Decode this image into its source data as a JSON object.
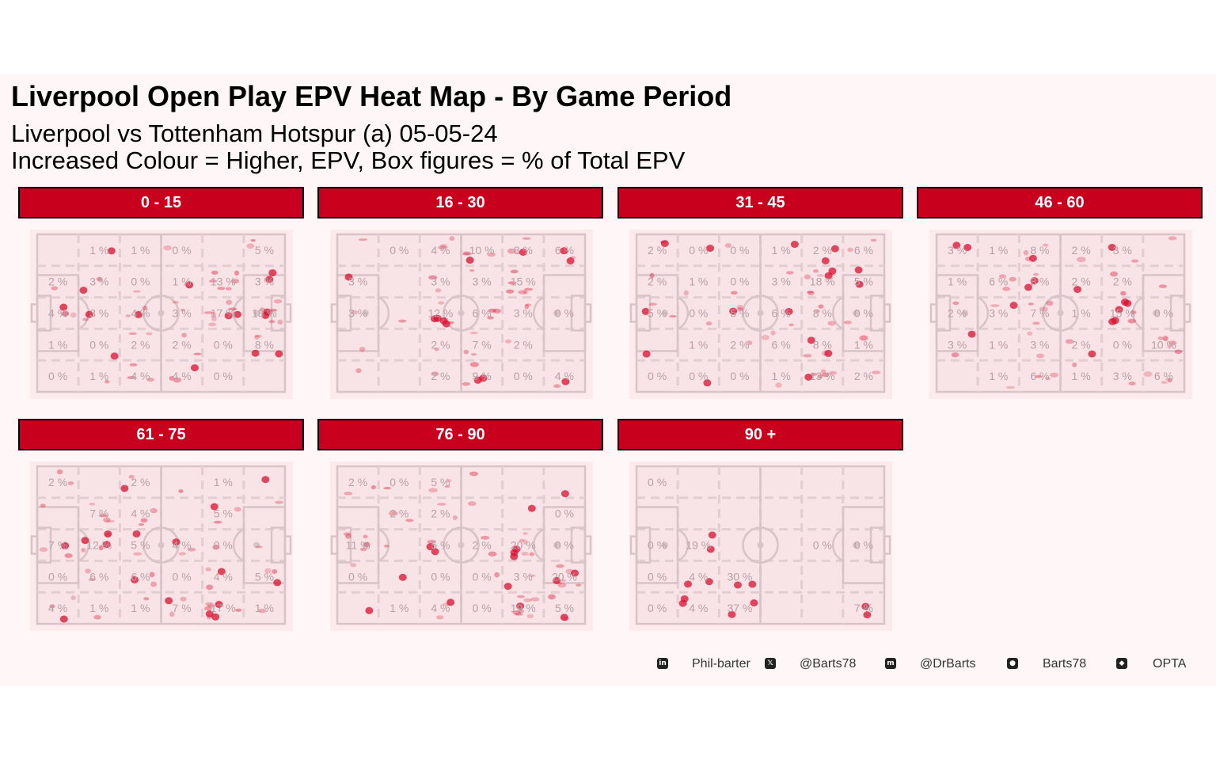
{
  "title": "Liverpool Open Play EPV Heat Map - By Game Period",
  "subtitle_line1": "Liverpool vs Tottenham Hotspur (a) 05-05-24",
  "subtitle_line2": "Increased Colour = Higher, EPV, Box figures = % of Total EPV",
  "colors": {
    "strip": "#c8001e",
    "background": "#fff7f7",
    "pitch": "#f8e4e6",
    "lines": "#d8c4c8",
    "heat": "#d81030"
  },
  "caption": [
    {
      "icon": "linkedin-icon",
      "text": "Phil-barter"
    },
    {
      "icon": "x-twitter-icon",
      "text": "@Barts78"
    },
    {
      "icon": "mastodon-icon",
      "text": "@DrBarts"
    },
    {
      "icon": "github-icon",
      "text": "Barts78"
    },
    {
      "icon": "dropbox-icon",
      "text": "OPTA"
    }
  ],
  "chart_data": {
    "type": "heatmap",
    "grid": {
      "columns": 6,
      "rows": 5
    },
    "panels": [
      {
        "label": "0 - 15",
        "zones": [
          [
            "",
            "1 %",
            "1 %",
            "0 %",
            "",
            "5 %"
          ],
          [
            "2 %",
            "3 %",
            "0 %",
            "1 %",
            "13 %",
            "3 %"
          ],
          [
            "4 %",
            "3 %",
            "4 %",
            "3 %",
            "17 %",
            "18 %"
          ],
          [
            "1 %",
            "0 %",
            "2 %",
            "2 %",
            "0 %",
            "8 %"
          ],
          [
            "0 %",
            "1 %",
            "4 %",
            "4 %",
            "0 %",
            ""
          ]
        ]
      },
      {
        "label": "16 - 30",
        "zones": [
          [
            "",
            "0 %",
            "4 %",
            "10 %",
            "8 %",
            "6 %"
          ],
          [
            "3 %",
            "",
            "3 %",
            "3 %",
            "15 %",
            ""
          ],
          [
            "3 %",
            "",
            "12 %",
            "6 %",
            "3 %",
            "0 %"
          ],
          [
            "",
            "",
            "2 %",
            "7 %",
            "2 %",
            ""
          ],
          [
            "",
            "",
            "2 %",
            "9 %",
            "0 %",
            "4 %"
          ]
        ]
      },
      {
        "label": "31 - 45",
        "zones": [
          [
            "2 %",
            "0 %",
            "0 %",
            "1 %",
            "2 %",
            "6 %"
          ],
          [
            "2 %",
            "1 %",
            "0 %",
            "3 %",
            "18 %",
            "5 %"
          ],
          [
            "5 %",
            "0 %",
            "5 %",
            "6 %",
            "8 %",
            "0 %"
          ],
          [
            "",
            "1 %",
            "2 %",
            "6 %",
            "8 %",
            "1 %"
          ],
          [
            "0 %",
            "0 %",
            "0 %",
            "1 %",
            "13 %",
            "2 %"
          ]
        ]
      },
      {
        "label": "46 - 60",
        "zones": [
          [
            "3 %",
            "1 %",
            "8 %",
            "2 %",
            "3 %",
            ""
          ],
          [
            "1 %",
            "6 %",
            "8 %",
            "2 %",
            "2 %",
            ""
          ],
          [
            "2 %",
            "3 %",
            "7 %",
            "1 %",
            "15 %",
            "0 %"
          ],
          [
            "3 %",
            "1 %",
            "3 %",
            "2 %",
            "0 %",
            "10 %"
          ],
          [
            "",
            "1 %",
            "6 %",
            "1 %",
            "3 %",
            "6 %"
          ]
        ]
      },
      {
        "label": "61 - 75",
        "zones": [
          [
            "2 %",
            "",
            "2 %",
            "",
            "1 %",
            ""
          ],
          [
            "",
            "7 %",
            "4 %",
            "",
            "5 %",
            ""
          ],
          [
            "7 %",
            "12 %",
            "5 %",
            "4 %",
            "0 %",
            ""
          ],
          [
            "0 %",
            "6 %",
            "6 %",
            "0 %",
            "4 %",
            "5 %"
          ],
          [
            "4 %",
            "1 %",
            "1 %",
            "7 %",
            "17 %",
            "1 %"
          ]
        ]
      },
      {
        "label": "76 - 90",
        "zones": [
          [
            "2 %",
            "0 %",
            "5 %",
            "",
            "",
            ""
          ],
          [
            "",
            "2 %",
            "2 %",
            "",
            "",
            "0 %"
          ],
          [
            "11 %",
            "",
            "5 %",
            "2 %",
            "20 %",
            "0 %"
          ],
          [
            "0 %",
            "",
            "0 %",
            "0 %",
            "3 %",
            "20 %"
          ],
          [
            "",
            "1 %",
            "4 %",
            "0 %",
            "19 %",
            "5 %"
          ]
        ]
      },
      {
        "label": "90 +",
        "zones": [
          [
            "0 %",
            "",
            "",
            "",
            "",
            ""
          ],
          [
            "",
            "",
            "",
            "",
            "",
            ""
          ],
          [
            "0 %",
            "19 %",
            "",
            "",
            "0 %",
            "0 %"
          ],
          [
            "0 %",
            "4 %",
            "30 %",
            "",
            "",
            ""
          ],
          [
            "0 %",
            "4 %",
            "37 %",
            "",
            "",
            "7 %"
          ]
        ]
      }
    ]
  }
}
